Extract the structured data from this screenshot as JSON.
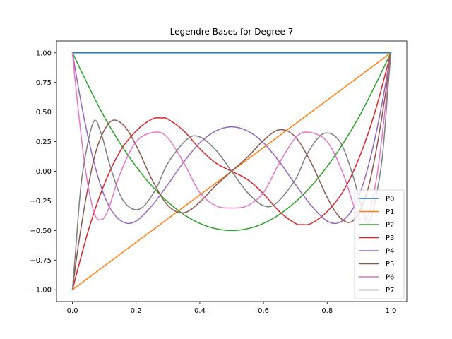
{
  "chart_data": {
    "type": "line",
    "title": "Legendre Bases for Degree 7",
    "xlabel": "",
    "ylabel": "",
    "xlim": [
      -0.05,
      1.05
    ],
    "ylim": [
      -1.1,
      1.1
    ],
    "x_ticks": [
      0.0,
      0.2,
      0.4,
      0.6,
      0.8,
      1.0
    ],
    "x_tick_labels": [
      "0.0",
      "0.2",
      "0.4",
      "0.6",
      "0.8",
      "1.0"
    ],
    "y_ticks": [
      1.0,
      0.75,
      0.5,
      0.25,
      0.0,
      -0.25,
      -0.5,
      -0.75,
      -1.0
    ],
    "y_tick_labels": [
      "1.00",
      "0.75",
      "0.50",
      "0.25",
      "0.00",
      "−0.25",
      "−0.50",
      "−0.75",
      "−1.00"
    ],
    "grid": false,
    "legend_position": "lower-right",
    "series": [
      {
        "name": "P0",
        "color": "#1f77b4",
        "points": [
          [
            0,
            1
          ],
          [
            1,
            1
          ]
        ]
      },
      {
        "name": "P1",
        "color": "#ff7f0e",
        "points": [
          [
            0,
            -1
          ],
          [
            1,
            1
          ]
        ]
      },
      {
        "name": "P2",
        "color": "#2ca02c",
        "points": [
          [
            0,
            1
          ],
          [
            0.1,
            0.46
          ],
          [
            0.2,
            0.04
          ],
          [
            0.3,
            -0.26
          ],
          [
            0.4,
            -0.44
          ],
          [
            0.5,
            -0.5
          ],
          [
            0.6,
            -0.44
          ],
          [
            0.7,
            -0.26
          ],
          [
            0.8,
            0.04
          ],
          [
            0.9,
            0.46
          ],
          [
            1,
            1
          ]
        ]
      },
      {
        "name": "P3",
        "color": "#d62728",
        "points": [
          [
            0,
            -1
          ],
          [
            0.05,
            -0.5
          ],
          [
            0.1,
            -0.11
          ],
          [
            0.15,
            0.17
          ],
          [
            0.2,
            0.34
          ],
          [
            0.25,
            0.44
          ],
          [
            0.28,
            0.45
          ],
          [
            0.3,
            0.44
          ],
          [
            0.35,
            0.34
          ],
          [
            0.4,
            0.19
          ],
          [
            0.45,
            0.07
          ],
          [
            0.5,
            0
          ],
          [
            0.55,
            -0.07
          ],
          [
            0.6,
            -0.19
          ],
          [
            0.65,
            -0.34
          ],
          [
            0.7,
            -0.44
          ],
          [
            0.72,
            -0.45
          ],
          [
            0.75,
            -0.44
          ],
          [
            0.8,
            -0.34
          ],
          [
            0.85,
            -0.17
          ],
          [
            0.9,
            0.11
          ],
          [
            0.95,
            0.5
          ],
          [
            1,
            1
          ]
        ]
      },
      {
        "name": "P4",
        "color": "#9467bd",
        "points": [
          [
            0,
            1
          ],
          [
            0.03,
            0.54
          ],
          [
            0.06,
            0.16
          ],
          [
            0.09,
            -0.13
          ],
          [
            0.12,
            -0.32
          ],
          [
            0.16,
            -0.43
          ],
          [
            0.2,
            -0.42
          ],
          [
            0.25,
            -0.29
          ],
          [
            0.3,
            -0.11
          ],
          [
            0.35,
            0.08
          ],
          [
            0.4,
            0.24
          ],
          [
            0.45,
            0.34
          ],
          [
            0.5,
            0.375
          ],
          [
            0.55,
            0.34
          ],
          [
            0.6,
            0.24
          ],
          [
            0.65,
            0.08
          ],
          [
            0.7,
            -0.11
          ],
          [
            0.75,
            -0.29
          ],
          [
            0.8,
            -0.42
          ],
          [
            0.84,
            -0.43
          ],
          [
            0.88,
            -0.32
          ],
          [
            0.91,
            -0.13
          ],
          [
            0.94,
            0.16
          ],
          [
            0.97,
            0.54
          ],
          [
            1,
            1
          ]
        ]
      },
      {
        "name": "P5",
        "color": "#8c564b",
        "points": [
          [
            0,
            -1
          ],
          [
            0.02,
            -0.6
          ],
          [
            0.05,
            -0.12
          ],
          [
            0.08,
            0.22
          ],
          [
            0.12,
            0.42
          ],
          [
            0.16,
            0.39
          ],
          [
            0.2,
            0.22
          ],
          [
            0.25,
            -0.07
          ],
          [
            0.3,
            -0.29
          ],
          [
            0.35,
            -0.35
          ],
          [
            0.4,
            -0.26
          ],
          [
            0.45,
            -0.12
          ],
          [
            0.5,
            0
          ],
          [
            0.55,
            0.12
          ],
          [
            0.6,
            0.26
          ],
          [
            0.65,
            0.35
          ],
          [
            0.7,
            0.29
          ],
          [
            0.75,
            0.07
          ],
          [
            0.8,
            -0.22
          ],
          [
            0.84,
            -0.39
          ],
          [
            0.88,
            -0.42
          ],
          [
            0.92,
            -0.22
          ],
          [
            0.95,
            0.12
          ],
          [
            0.98,
            0.6
          ],
          [
            1,
            1
          ]
        ]
      },
      {
        "name": "P6",
        "color": "#e377c2",
        "points": [
          [
            0,
            1
          ],
          [
            0.015,
            0.6
          ],
          [
            0.04,
            0.03
          ],
          [
            0.065,
            -0.32
          ],
          [
            0.085,
            -0.41
          ],
          [
            0.11,
            -0.34
          ],
          [
            0.15,
            -0.02
          ],
          [
            0.2,
            0.25
          ],
          [
            0.26,
            0.33
          ],
          [
            0.3,
            0.28
          ],
          [
            0.35,
            0.07
          ],
          [
            0.4,
            -0.18
          ],
          [
            0.45,
            -0.29
          ],
          [
            0.5,
            -0.31
          ],
          [
            0.55,
            -0.29
          ],
          [
            0.6,
            -0.18
          ],
          [
            0.65,
            0.07
          ],
          [
            0.7,
            0.28
          ],
          [
            0.74,
            0.33
          ],
          [
            0.8,
            0.25
          ],
          [
            0.85,
            -0.02
          ],
          [
            0.89,
            -0.34
          ],
          [
            0.915,
            -0.41
          ],
          [
            0.935,
            -0.32
          ],
          [
            0.96,
            0.03
          ],
          [
            0.985,
            0.6
          ],
          [
            1,
            1
          ]
        ]
      },
      {
        "name": "P7",
        "color": "#7f7f7f",
        "points": [
          [
            0,
            -1
          ],
          [
            0.01,
            -0.67
          ],
          [
            0.03,
            -0.05
          ],
          [
            0.065,
            0.41
          ],
          [
            0.09,
            0.32
          ],
          [
            0.12,
            0.03
          ],
          [
            0.16,
            -0.25
          ],
          [
            0.21,
            -0.32
          ],
          [
            0.26,
            -0.16
          ],
          [
            0.3,
            0.07
          ],
          [
            0.36,
            0.27
          ],
          [
            0.4,
            0.29
          ],
          [
            0.45,
            0.18
          ],
          [
            0.5,
            0
          ],
          [
            0.55,
            -0.18
          ],
          [
            0.6,
            -0.29
          ],
          [
            0.64,
            -0.27
          ],
          [
            0.7,
            -0.07
          ],
          [
            0.74,
            0.16
          ],
          [
            0.79,
            0.32
          ],
          [
            0.84,
            0.25
          ],
          [
            0.88,
            -0.03
          ],
          [
            0.91,
            -0.32
          ],
          [
            0.935,
            -0.41
          ],
          [
            0.97,
            0.05
          ],
          [
            0.99,
            0.67
          ],
          [
            1,
            1
          ]
        ]
      }
    ]
  }
}
